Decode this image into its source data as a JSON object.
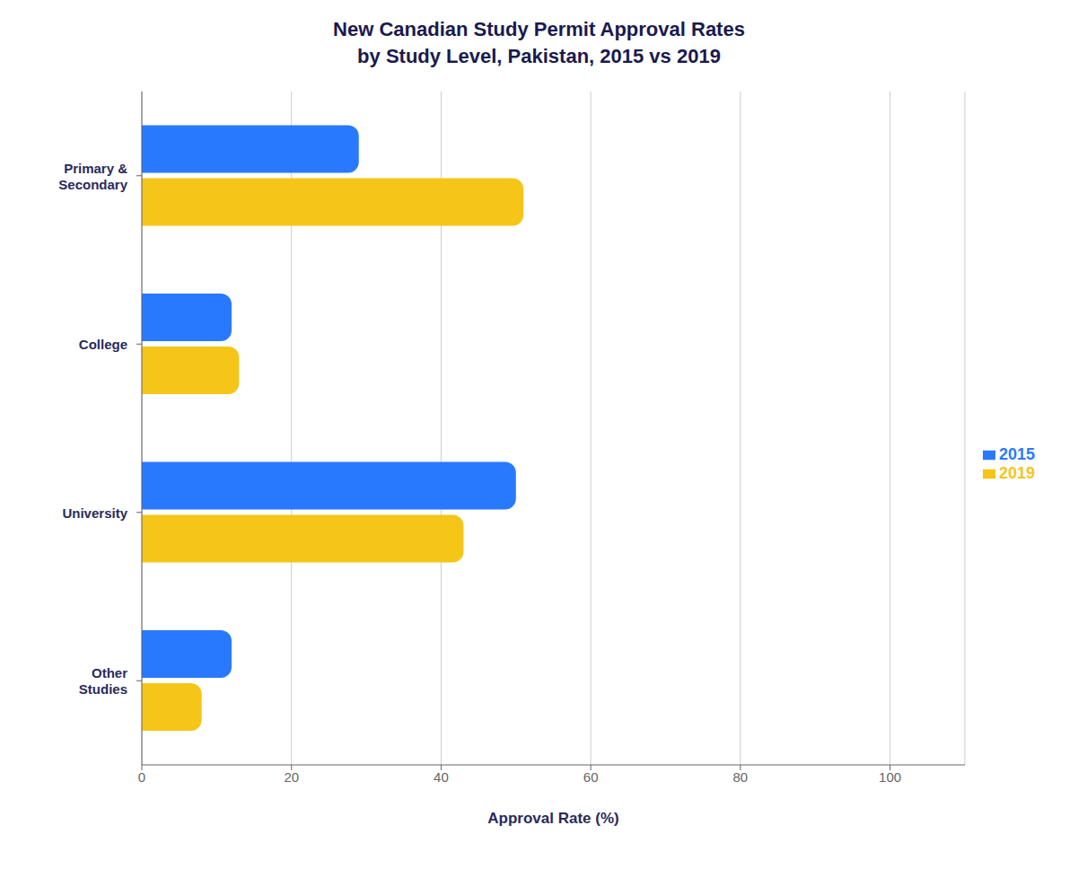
{
  "chart_data": {
    "type": "bar",
    "orientation": "horizontal",
    "title": "New Canadian Study Permit Approval Rates\nby Study Level, Pakistan, 2015 vs 2019",
    "categories": [
      "Other\nStudies",
      "University",
      "College",
      "Primary &\nSecondary"
    ],
    "series": [
      {
        "name": "2015",
        "color": "#2979FF",
        "values": [
          12,
          50,
          12,
          29
        ]
      },
      {
        "name": "2019",
        "color": "#F5C518",
        "values": [
          8,
          43,
          13,
          51
        ]
      }
    ],
    "xlabel": "Approval Rate (%)",
    "xlim": [
      0,
      110
    ],
    "xticks": [
      0,
      20,
      40,
      60,
      80,
      100
    ],
    "grid": true,
    "legend": "right"
  }
}
